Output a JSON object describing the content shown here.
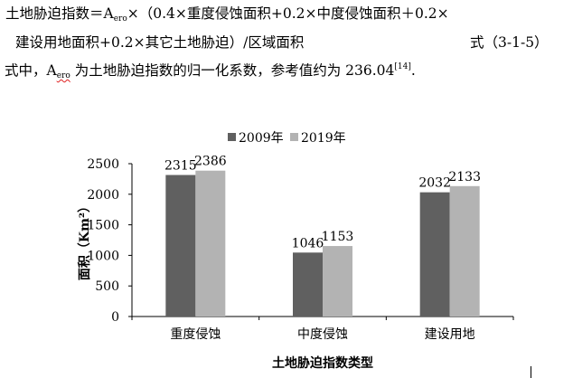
{
  "text": {
    "line1": "土地胁迫指数＝A",
    "line1_sub": "ero",
    "line1_rest": "×（0.4×重度侵蚀面积+0.2×中度侵蚀面积＋0.2×",
    "line2": "建设用地面积+0.2×其它土地胁迫）/区域面积",
    "eq_number": "式（3-1-5）",
    "line3_a": "式中，A",
    "line3_sub": "ero",
    "line3_b": "为土地胁迫指数的归一化系数，参考值约为 236.04",
    "line3_ref": "[14]",
    "line3_end": "."
  },
  "colors": {
    "series_2009": "#606060",
    "series_2019": "#b3b3b3"
  },
  "chart_data": {
    "type": "bar",
    "categories": [
      "重度侵蚀",
      "中度侵蚀",
      "建设用地"
    ],
    "series": [
      {
        "name": "2009年",
        "values": [
          2315,
          1046,
          2032
        ]
      },
      {
        "name": "2019年",
        "values": [
          2386,
          1153,
          2133
        ]
      }
    ],
    "ylabel": "面积（Km²）",
    "xlabel": "土地胁迫指数类型",
    "ylim": [
      0,
      2500
    ],
    "yticks": [
      0,
      500,
      1000,
      1500,
      2000,
      2500
    ],
    "legend": "top-center",
    "grid": false,
    "data_labels": true
  }
}
